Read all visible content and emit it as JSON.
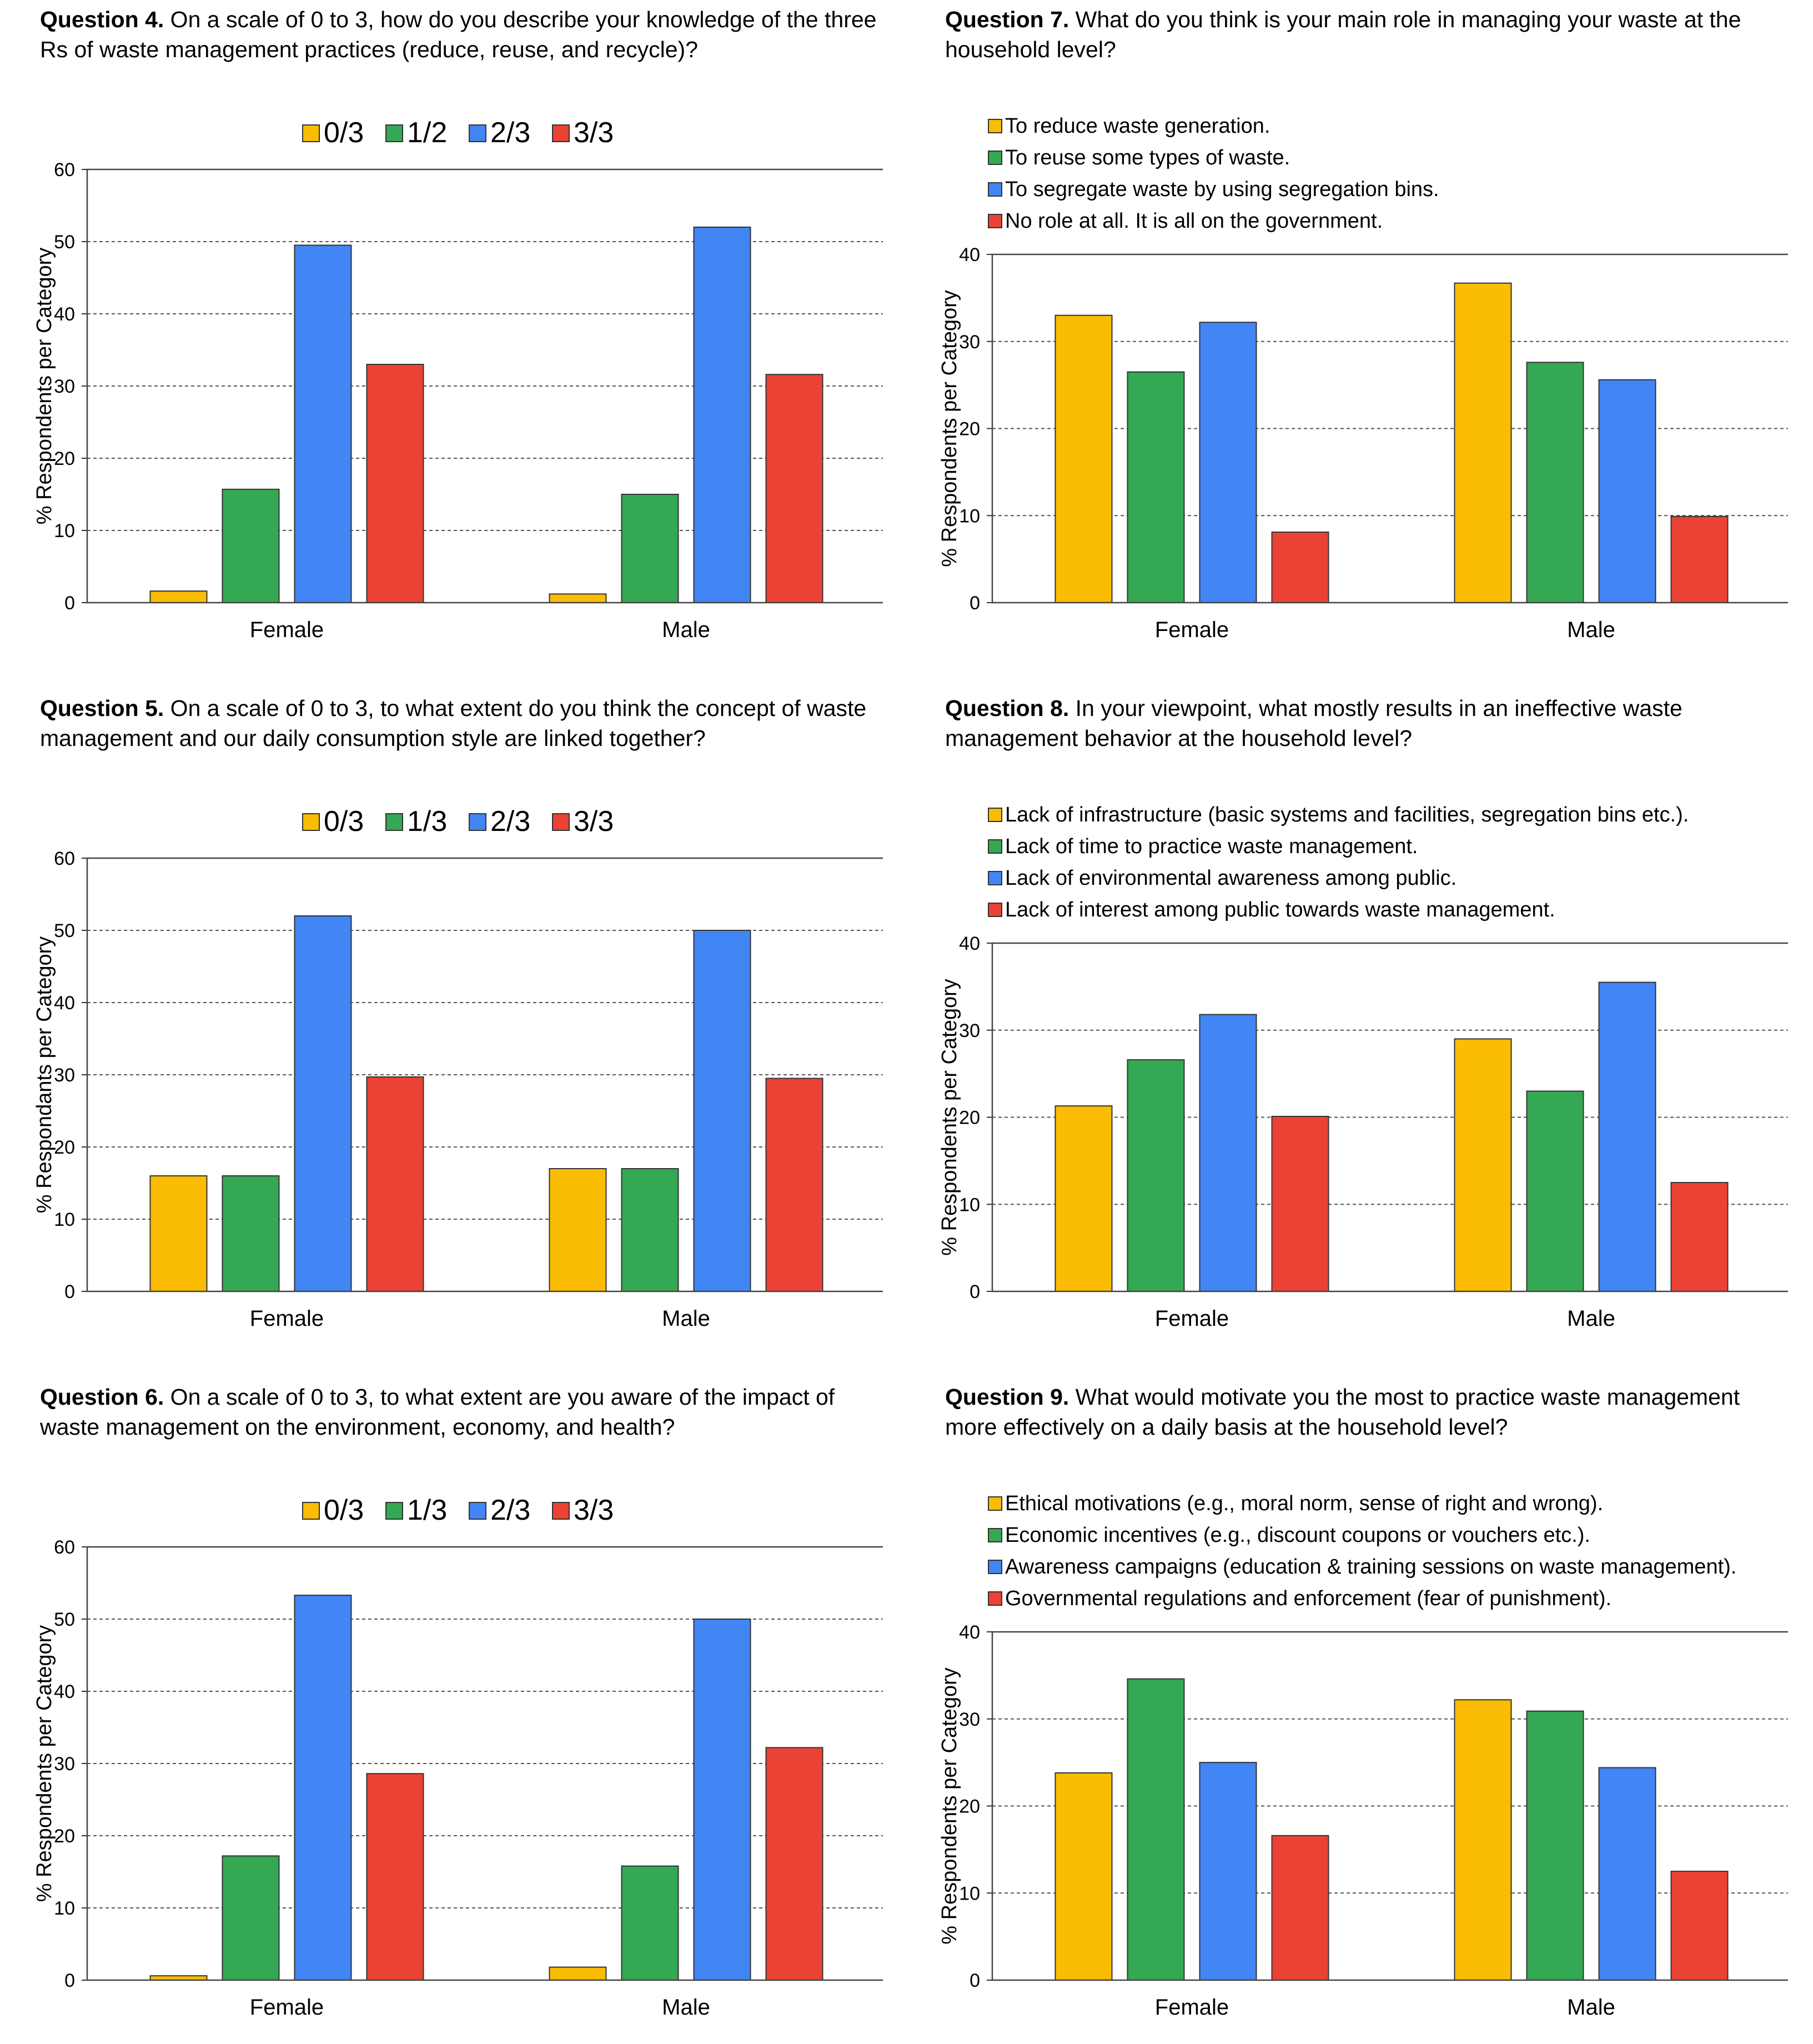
{
  "chart_data": [
    {
      "type": "bar",
      "question_number": "Question 4.",
      "question_text": "On a scale of 0 to 3, how do you describe your knowledge of the three Rs of waste management practices (reduce, reuse, and recycle)?",
      "categories": [
        "Female",
        "Male"
      ],
      "series": [
        {
          "name": "0/3",
          "color": "#FBBC04",
          "values": [
            1.6,
            1.2
          ]
        },
        {
          "name": "1/2",
          "color": "#34A853",
          "values": [
            15.7,
            15.0
          ]
        },
        {
          "name": "2/3",
          "color": "#4285F4",
          "values": [
            49.5,
            52.0
          ]
        },
        {
          "name": "3/3",
          "color": "#EA4335",
          "values": [
            33.0,
            31.6
          ]
        }
      ],
      "legend_position": "top",
      "ylabel": "% Respondents per Category",
      "ylim": [
        0,
        60
      ],
      "yticks": [
        0,
        10,
        20,
        30,
        40,
        50,
        60
      ]
    },
    {
      "type": "bar",
      "question_number": "Question 7.",
      "question_text": "What do you think is your main role in managing your waste at the household level?",
      "categories": [
        "Female",
        "Male"
      ],
      "series": [
        {
          "name": "To reduce waste generation.",
          "color": "#FBBC04",
          "values": [
            33.0,
            36.7
          ]
        },
        {
          "name": "To reuse some types of waste.",
          "color": "#34A853",
          "values": [
            26.5,
            27.6
          ]
        },
        {
          "name": "To segregate waste by using segregation bins.",
          "color": "#4285F4",
          "values": [
            32.2,
            25.6
          ]
        },
        {
          "name": "No role at all. It is all on the government.",
          "color": "#EA4335",
          "values": [
            8.1,
            9.9
          ]
        }
      ],
      "legend_position": "top-left",
      "ylabel": "% Respondents per Category",
      "ylim": [
        0,
        40
      ],
      "yticks": [
        0,
        10,
        20,
        30,
        40
      ]
    },
    {
      "type": "bar",
      "question_number": "Question 5.",
      "question_text": "On a scale of 0 to 3, to what extent do you think the concept of waste management and our daily consumption style are linked together?",
      "categories": [
        "Female",
        "Male"
      ],
      "series": [
        {
          "name": "0/3",
          "color": "#FBBC04",
          "values": [
            16.0,
            17.0
          ]
        },
        {
          "name": "1/3",
          "color": "#34A853",
          "values": [
            16.0,
            17.0
          ]
        },
        {
          "name": "2/3",
          "color": "#4285F4",
          "values": [
            52.0,
            50.0
          ]
        },
        {
          "name": "3/3",
          "color": "#EA4335",
          "values": [
            29.7,
            29.5
          ]
        }
      ],
      "legend_position": "top",
      "ylabel": "% Respondants per Category",
      "ylim": [
        0,
        60
      ],
      "yticks": [
        0,
        10,
        20,
        30,
        40,
        50,
        60
      ]
    },
    {
      "type": "bar",
      "question_number": "Question 8.",
      "question_text": "In your viewpoint, what mostly results in an ineffective waste management behavior at the household level?",
      "categories": [
        "Female",
        "Male"
      ],
      "series": [
        {
          "name": "Lack of infrastructure (basic systems and facilities, segregation bins etc.).",
          "color": "#FBBC04",
          "values": [
            21.3,
            29.0
          ]
        },
        {
          "name": "Lack of time to practice waste management.",
          "color": "#34A853",
          "values": [
            26.6,
            23.0
          ]
        },
        {
          "name": "Lack of environmental awareness among public.",
          "color": "#4285F4",
          "values": [
            31.8,
            35.5
          ]
        },
        {
          "name": "Lack of interest among public towards waste management.",
          "color": "#EA4335",
          "values": [
            20.1,
            12.5
          ]
        }
      ],
      "legend_position": "top-left",
      "ylabel": "% Respondents per Category",
      "ylim": [
        0,
        40
      ],
      "yticks": [
        0,
        10,
        20,
        30,
        40
      ]
    },
    {
      "type": "bar",
      "question_number": "Question 6.",
      "question_text": "On a scale of 0 to 3, to what extent are you aware of the impact of waste management on the environment, economy, and health?",
      "categories": [
        "Female",
        "Male"
      ],
      "series": [
        {
          "name": "0/3",
          "color": "#FBBC04",
          "values": [
            0.6,
            1.8
          ]
        },
        {
          "name": "1/3",
          "color": "#34A853",
          "values": [
            17.2,
            15.8
          ]
        },
        {
          "name": "2/3",
          "color": "#4285F4",
          "values": [
            53.3,
            50.0
          ]
        },
        {
          "name": "3/3",
          "color": "#EA4335",
          "values": [
            28.6,
            32.2
          ]
        }
      ],
      "legend_position": "top",
      "ylabel": "% Respondents per Category",
      "ylim": [
        0,
        60
      ],
      "yticks": [
        0,
        10,
        20,
        30,
        40,
        50,
        60
      ]
    },
    {
      "type": "bar",
      "question_number": "Question 9.",
      "question_text": "What would motivate you the most to practice waste management more effectively on a daily basis at the household level?",
      "categories": [
        "Female",
        "Male"
      ],
      "series": [
        {
          "name": "Ethical motivations (e.g., moral norm, sense of right and wrong).",
          "color": "#FBBC04",
          "values": [
            23.8,
            32.2
          ]
        },
        {
          "name": "Economic incentives (e.g., discount coupons or vouchers etc.).",
          "color": "#34A853",
          "values": [
            34.6,
            30.9
          ]
        },
        {
          "name": "Awareness campaigns (education & training sessions on waste management).",
          "color": "#4285F4",
          "values": [
            25.0,
            24.4
          ]
        },
        {
          "name": "Governmental regulations and enforcement (fear of punishment).",
          "color": "#EA4335",
          "values": [
            16.6,
            12.5
          ]
        }
      ],
      "legend_position": "top-left",
      "ylabel": "% Respondents per Category",
      "ylim": [
        0,
        40
      ],
      "yticks": [
        0,
        10,
        20,
        30,
        40
      ]
    }
  ]
}
